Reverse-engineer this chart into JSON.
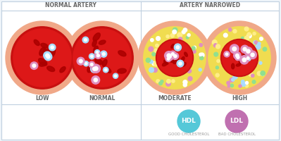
{
  "bg_color": "#eef4f9",
  "panel_bg": "#ffffff",
  "border_color": "#c0d0e0",
  "title_left": "NORMAL ARTERY",
  "title_right": "ARTERY NARROWED",
  "labels": [
    "LOW",
    "NORMAL",
    "MODERATE",
    "HIGH"
  ],
  "hdl_color": "#55c8d8",
  "ldl_color": "#c070b0",
  "hdl_label": "GOOD CHOLESTEROL",
  "ldl_label": "BAD CHOLESTEROL",
  "title_fontsize": 5.5,
  "label_fontsize": 5.5,
  "legend_fontsize": 4.0,
  "legend_title_fontsize": 6.5,
  "artery_wall_color": "#f0a080",
  "blood_outer_color": "#c81010",
  "blood_inner_color": "#dd2020",
  "rbc_color": "#990000",
  "plaque_color": "#f0dc60",
  "hdl_particle_color": "#aaddff",
  "ldl_particle_color": "#e090c0"
}
